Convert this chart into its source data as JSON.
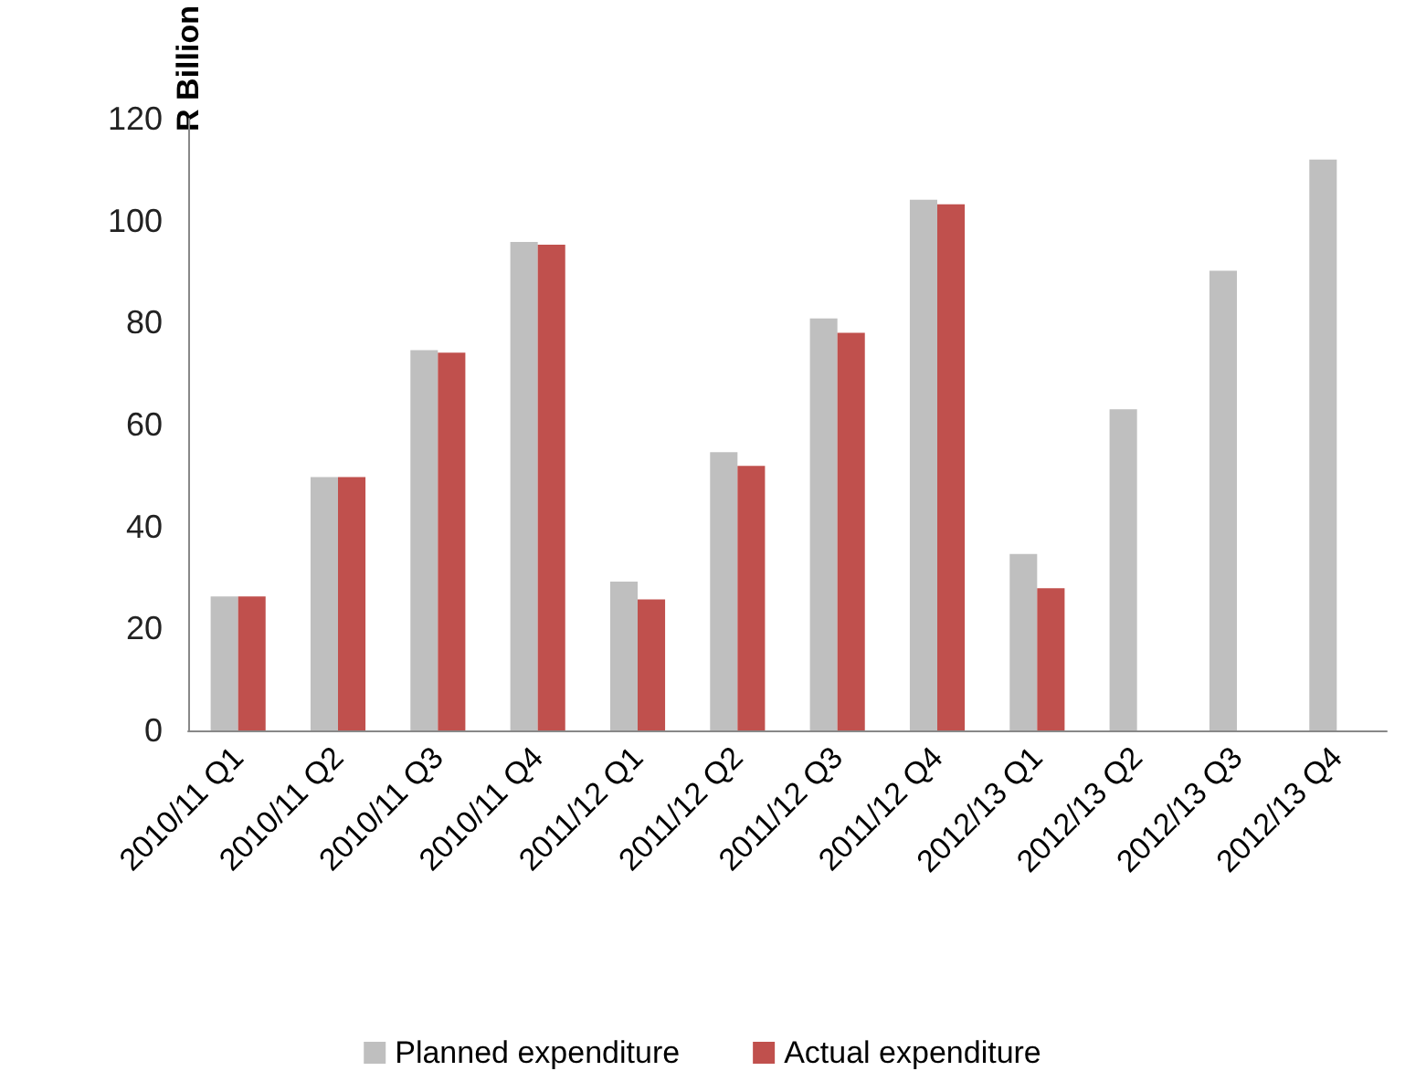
{
  "chart_data": {
    "type": "bar",
    "ylabel": "R Billion",
    "categories": [
      "2010/11 Q1",
      "2010/11 Q2",
      "2010/11 Q3",
      "2010/11 Q4",
      "2011/12 Q1",
      "2011/12 Q2",
      "2011/12 Q3",
      "2011/12 Q4",
      "2012/13 Q1",
      "2012/13 Q2",
      "2012/13 Q3",
      "2012/13 Q4"
    ],
    "series": [
      {
        "name": "Planned expenditure",
        "color": "#bfbfbf",
        "values": [
          26.3,
          49.7,
          74.6,
          95.8,
          29.2,
          54.6,
          80.8,
          104.1,
          34.6,
          63,
          90.2,
          112
        ]
      },
      {
        "name": "Actual expenditure",
        "color": "#c0504d",
        "values": [
          26.3,
          49.7,
          74.1,
          95.3,
          25.7,
          51.9,
          78,
          103.2,
          27.9,
          null,
          null,
          null
        ]
      }
    ],
    "ylim": [
      0,
      120
    ],
    "yticks": [
      0,
      20,
      40,
      60,
      80,
      100,
      120
    ],
    "grid": false,
    "legend": "bottom"
  }
}
